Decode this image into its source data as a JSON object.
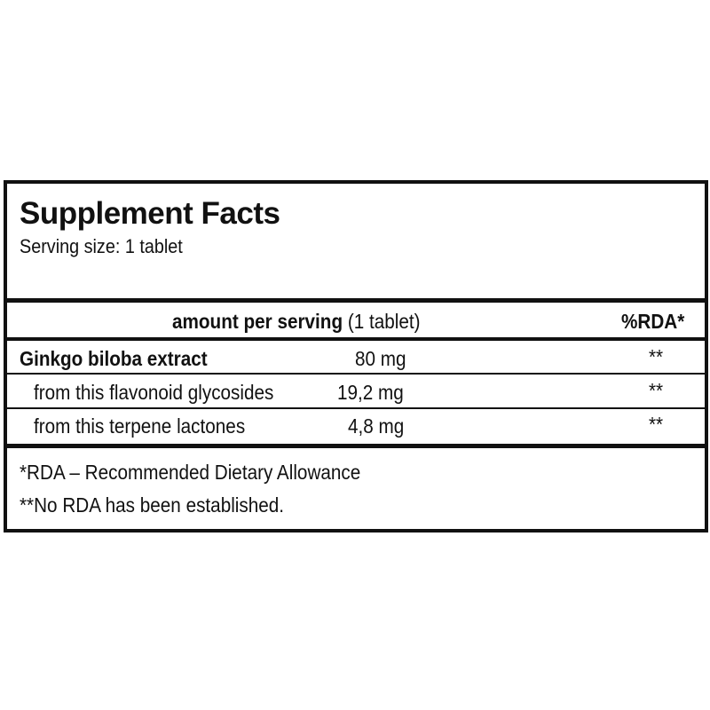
{
  "title": "Supplement Facts",
  "serving_size": "Serving size: 1 tablet",
  "header": {
    "amount_label": "amount per serving",
    "amount_unit": "(1 tablet)",
    "rda_label": "%RDA*"
  },
  "rows": [
    {
      "name": "Ginkgo biloba extract",
      "amount": "80 mg",
      "rda": "**"
    },
    {
      "name": "from this flavonoid glycosides",
      "amount": "19,2 mg",
      "rda": "**"
    },
    {
      "name": "from this terpene lactones",
      "amount": "4,8 mg",
      "rda": "**"
    }
  ],
  "footnotes": [
    "*RDA – Recommended Dietary Allowance",
    "**No RDA has been established."
  ]
}
